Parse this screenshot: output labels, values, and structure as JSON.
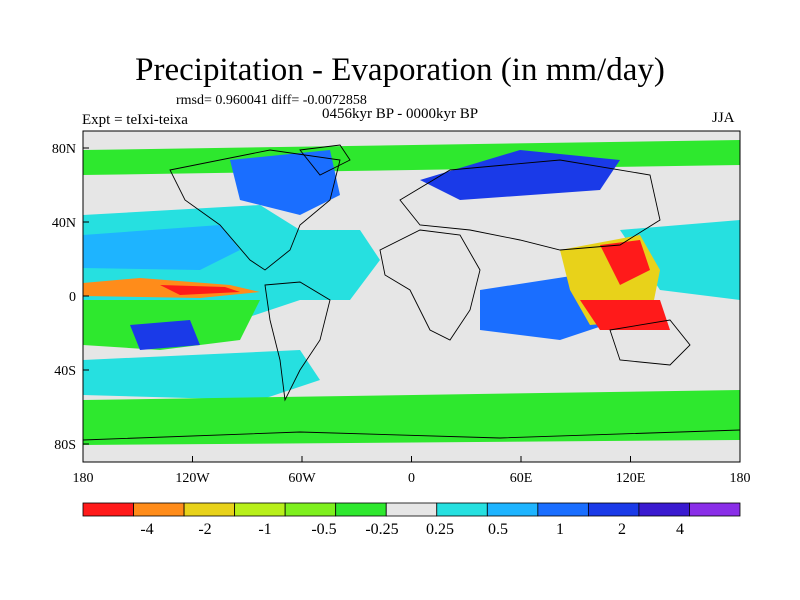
{
  "title": "Precipitation - Evaporation (in mm/day)",
  "stats_line": "rmsd= 0.960041 diff= -0.0072858",
  "period_line": "0456kyr BP - 0000kyr BP",
  "expt_line": "Expt = teIxi-teixa",
  "season": "JJA",
  "axes": {
    "lon_labels": [
      "180",
      "120W",
      "60W",
      "0",
      "60E",
      "120E",
      "180"
    ],
    "lat_labels": [
      "80N",
      "40N",
      "0",
      "40S",
      "80S"
    ]
  },
  "colorbar": {
    "colors": [
      "#ff1a1a",
      "#ff8c1a",
      "#e8d21a",
      "#b8f01a",
      "#7ef01e",
      "#2ee82e",
      "#e6e6e6",
      "#26e0e0",
      "#1eb4ff",
      "#1a6eff",
      "#1a3ae8",
      "#3a1ad0",
      "#8a2ee8"
    ],
    "labels": [
      "-4",
      "-2",
      "-1",
      "-0.5",
      "-0.25",
      "0.25",
      "0.5",
      "1",
      "2",
      "4"
    ]
  },
  "legend_colors": {
    "neutral": "#e6e6e6",
    "land_outline": "#000000"
  }
}
